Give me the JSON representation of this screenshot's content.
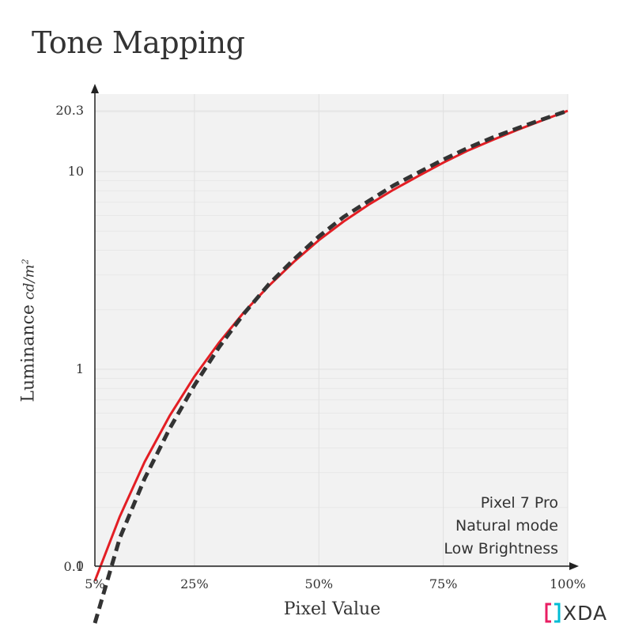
{
  "chart_data": {
    "type": "line",
    "title": "Tone Mapping",
    "xlabel": "Pixel Value",
    "ylabel": "Luminance",
    "ylabel_unit": "cd/m",
    "ylabel_unit_sup": "2",
    "y_scale": "log",
    "xlim": [
      5,
      100
    ],
    "ylim": [
      0,
      20.3
    ],
    "x_ticks": [
      {
        "value": 5,
        "label": "5%"
      },
      {
        "value": 25,
        "label": "25%"
      },
      {
        "value": 50,
        "label": "50%"
      },
      {
        "value": 75,
        "label": "75%"
      },
      {
        "value": 100,
        "label": "100%"
      }
    ],
    "y_ticks": [
      {
        "value": 0,
        "label": "0"
      },
      {
        "value": 0.1,
        "label": "0.1"
      },
      {
        "value": 1,
        "label": "1"
      },
      {
        "value": 10,
        "label": "10"
      },
      {
        "value": 20.3,
        "label": "20.3"
      }
    ],
    "grid": true,
    "series": [
      {
        "style": "solid",
        "color": "#e31e24",
        "x": [
          5,
          10,
          15,
          20,
          25,
          30,
          35,
          40,
          45,
          50,
          55,
          60,
          65,
          70,
          75,
          80,
          85,
          90,
          95,
          100
        ],
        "y": [
          0.085,
          0.18,
          0.34,
          0.58,
          0.92,
          1.37,
          1.95,
          2.65,
          3.5,
          4.5,
          5.6,
          6.8,
          8.1,
          9.5,
          11.1,
          12.8,
          14.5,
          16.3,
          18.2,
          20.3
        ]
      },
      {
        "style": "dashed",
        "color": "#333333",
        "x": [
          5,
          10,
          15,
          20,
          25,
          30,
          35,
          40,
          45,
          50,
          55,
          60,
          65,
          70,
          75,
          80,
          85,
          90,
          95,
          100
        ],
        "y": [
          0.052,
          0.14,
          0.28,
          0.5,
          0.83,
          1.3,
          1.92,
          2.7,
          3.6,
          4.7,
          5.9,
          7.1,
          8.5,
          9.9,
          11.5,
          13.2,
          14.9,
          16.6,
          18.4,
          20.3
        ]
      }
    ],
    "annotation": [
      "Pixel 7 Pro",
      "Natural mode",
      "Low Brightness"
    ]
  },
  "brand": {
    "name": "XDA",
    "logo_color": "#e91e63",
    "logo_accent": "#00bcd4"
  },
  "colors": {
    "plot_background": "#f2f2f2",
    "grid_major": "#e0e0e0",
    "grid_minor": "#e8e8e8",
    "axis": "#222222"
  }
}
